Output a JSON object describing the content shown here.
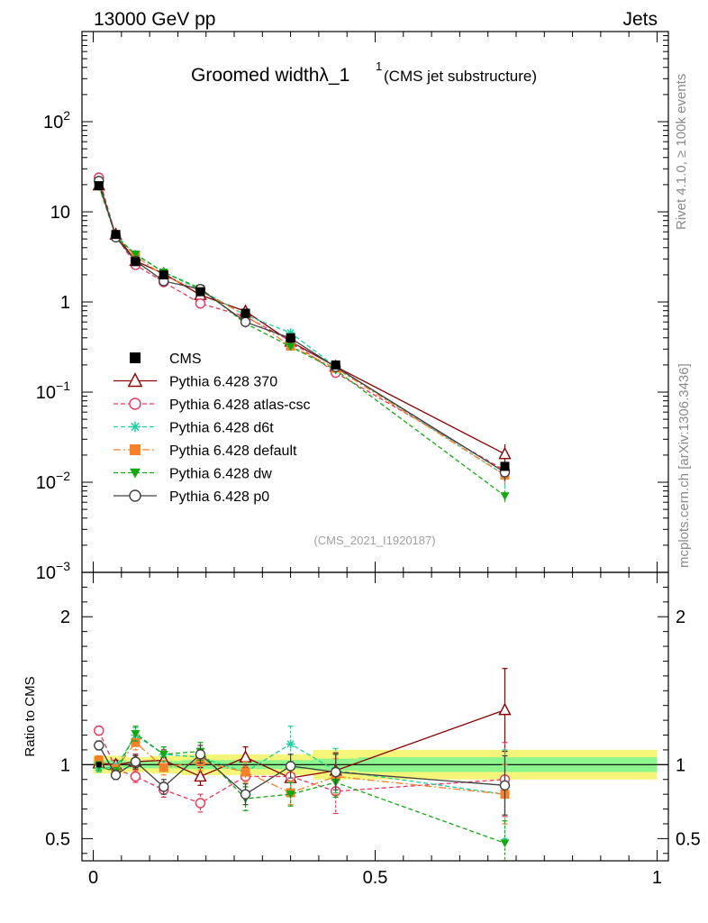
{
  "header": {
    "left": "13000 GeV pp",
    "right": "Jets"
  },
  "side_labels": {
    "rivet": "Rivet 4.1.0, ≥ 100k events",
    "mcplots": "mcplots.cern.ch [arXiv:1306.3436]"
  },
  "ratio_ylabel": "Ratio to CMS",
  "colors": {
    "CMS": "#000000",
    "p370": "#8b0000",
    "atlas": "#e8385c",
    "d6t": "#1fd0a0",
    "default": "#f5822a",
    "dw": "#14a814",
    "p0": "#404040",
    "band_inner": "#8cf58c",
    "band_outer": "#f5f57a"
  },
  "chart_data": {
    "type": "line",
    "title": "Groomed widthλ_1",
    "title_sup": "1",
    "subtitle": "(CMS jet substructure)",
    "watermark": "(CMS_2021_I1920187)",
    "x": [
      0.01,
      0.04,
      0.075,
      0.125,
      0.19,
      0.27,
      0.35,
      0.43,
      0.73
    ],
    "xlim": [
      -0.02,
      1.02
    ],
    "ylim": [
      0.001,
      1000
    ],
    "yscale": "log",
    "main_yticks": [
      {
        "v": 0.001,
        "m": "10",
        "e": "−3"
      },
      {
        "v": 0.01,
        "m": "10",
        "e": "−2"
      },
      {
        "v": 0.1,
        "m": "10",
        "e": "−1"
      },
      {
        "v": 1,
        "m": "1",
        "e": ""
      },
      {
        "v": 10,
        "m": "10",
        "e": ""
      },
      {
        "v": 100,
        "m": "10",
        "e": "2"
      }
    ],
    "ratio_ylim": [
      0.35,
      2.3
    ],
    "ratio_yticks": [
      {
        "v": 0.5,
        "l": "0.5"
      },
      {
        "v": 1,
        "l": "1"
      },
      {
        "v": 2,
        "l": "2"
      }
    ],
    "xticks": [
      {
        "v": 0,
        "l": "0"
      },
      {
        "v": 0.5,
        "l": "0.5"
      },
      {
        "v": 1,
        "l": "1"
      }
    ],
    "data": {
      "name": "CMS",
      "values": [
        19.5,
        5.6,
        2.8,
        2.0,
        1.3,
        0.75,
        0.4,
        0.2,
        0.015
      ]
    },
    "band_inner": [
      0.03,
      0.03,
      0.025,
      0.025,
      0.03,
      0.03,
      0.03,
      0.04,
      0.05
    ],
    "band_outer": [
      0.06,
      0.06,
      0.05,
      0.06,
      0.07,
      0.07,
      0.07,
      0.1,
      0.1
    ],
    "series": [
      {
        "name": "Pythia 6.428 370",
        "key": "p370",
        "marker": "triangle-open",
        "dash": "",
        "ratio": [
          1.01,
          1.0,
          1.02,
          1.03,
          0.92,
          1.05,
          0.91,
          0.96,
          1.37
        ],
        "err": [
          0.03,
          0.03,
          0.05,
          0.07,
          0.06,
          0.07,
          0.08,
          0.12,
          0.28
        ]
      },
      {
        "name": "Pythia 6.428 atlas-csc",
        "key": "atlas",
        "marker": "circle-open",
        "dash": "5,3",
        "ratio": [
          1.23,
          0.97,
          0.92,
          0.83,
          0.74,
          0.92,
          0.92,
          0.82,
          0.9
        ],
        "err": [
          0.03,
          0.03,
          0.04,
          0.05,
          0.06,
          0.07,
          0.1,
          0.15,
          0.25
        ]
      },
      {
        "name": "Pythia 6.428 d6t",
        "key": "d6t",
        "marker": "star",
        "dash": "5,3",
        "ratio": [
          0.98,
          0.98,
          1.2,
          1.07,
          1.05,
          0.95,
          1.14,
          0.96,
          0.8
        ],
        "err": [
          0.03,
          0.03,
          0.05,
          0.05,
          0.06,
          0.07,
          0.12,
          0.15,
          0.3
        ]
      },
      {
        "name": "Pythia 6.428 default",
        "key": "default",
        "marker": "square",
        "dash": "8,3,2,3",
        "ratio": [
          1.03,
          0.97,
          1.15,
          0.98,
          1.02,
          0.95,
          0.81,
          0.92,
          0.8
        ],
        "err": [
          0.03,
          0.03,
          0.05,
          0.05,
          0.06,
          0.07,
          0.08,
          0.12,
          0.2
        ]
      },
      {
        "name": "Pythia 6.428 dw",
        "key": "dw",
        "marker": "triangle-down",
        "dash": "5,3",
        "ratio": [
          0.99,
          0.95,
          1.21,
          1.07,
          1.09,
          0.77,
          0.8,
          0.88,
          0.47
        ],
        "err": [
          0.03,
          0.03,
          0.05,
          0.05,
          0.06,
          0.08,
          0.08,
          0.1,
          0.15
        ]
      },
      {
        "name": "Pythia 6.428 p0",
        "key": "p0",
        "marker": "circle-open",
        "dash": "",
        "ratio": [
          1.13,
          0.93,
          1.02,
          0.85,
          1.07,
          0.8,
          0.99,
          0.95,
          0.86
        ],
        "err": [
          0.03,
          0.03,
          0.04,
          0.05,
          0.06,
          0.07,
          0.08,
          0.12,
          0.2
        ]
      }
    ]
  }
}
